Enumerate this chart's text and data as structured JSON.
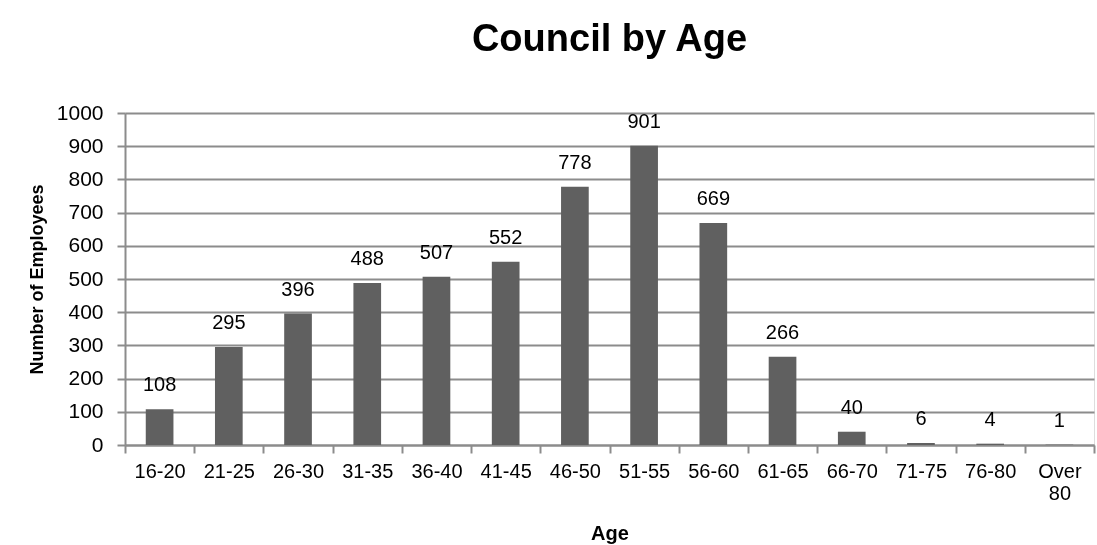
{
  "chart_data": {
    "type": "bar",
    "title": "Council by Age",
    "xlabel": "Age",
    "ylabel": "Number of Employees",
    "categories": [
      "16-20",
      "21-25",
      "26-30",
      "31-35",
      "36-40",
      "41-45",
      "46-50",
      "51-55",
      "56-60",
      "61-65",
      "66-70",
      "71-75",
      "76-80",
      "Over 80"
    ],
    "values": [
      108,
      295,
      396,
      488,
      507,
      552,
      778,
      901,
      669,
      266,
      40,
      6,
      4,
      1
    ],
    "color": "#606060",
    "ylim": [
      0,
      1000
    ],
    "yticks": [
      0,
      100,
      200,
      300,
      400,
      500,
      600,
      700,
      800,
      900,
      1000
    ],
    "grid": "y",
    "data_labels": true
  }
}
